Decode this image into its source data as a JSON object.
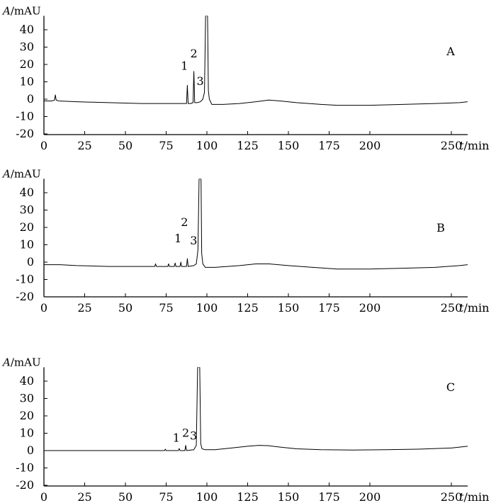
{
  "chart_data": [
    {
      "type": "line",
      "panel": "A",
      "ylabel_symbol": "A",
      "ylabel_unit": "/mAU",
      "xlabel_symbol": "t",
      "xlabel_unit": "/min",
      "xlim": [
        0,
        260
      ],
      "ylim": [
        -20,
        48
      ],
      "xticks": [
        0,
        25,
        50,
        75,
        100,
        125,
        150,
        175,
        200,
        250
      ],
      "yticks": [
        -20,
        -10,
        0,
        10,
        20,
        30,
        40
      ],
      "peaks": [
        {
          "label": "1",
          "x": 88,
          "y": 8
        },
        {
          "label": "2",
          "x": 92,
          "y": 16
        },
        {
          "label": "3",
          "x": 98.5,
          "y": 4
        }
      ],
      "x": [
        0,
        5,
        6.5,
        7,
        7.5,
        9,
        20,
        40,
        60,
        80,
        86,
        87.5,
        88,
        88.5,
        90,
        91.5,
        92,
        92.5,
        94,
        96,
        97.5,
        98.5,
        99.2,
        99.6,
        100,
        100.4,
        100.9,
        101.5,
        103,
        110,
        120,
        130,
        138,
        145,
        155,
        170,
        180,
        200,
        220,
        240,
        255,
        260
      ],
      "y": [
        -1,
        -1,
        -0.5,
        2.5,
        -0.5,
        -1,
        -1.5,
        -2,
        -2.5,
        -2.5,
        -2.5,
        -2.5,
        8,
        -2.5,
        -2.5,
        -2,
        16,
        -2,
        -2,
        -1.5,
        0,
        4,
        48,
        48,
        48,
        48,
        5,
        0,
        -3,
        -3,
        -2.5,
        -1.5,
        -0.5,
        -1,
        -2,
        -3,
        -3.5,
        -3.5,
        -3,
        -2.5,
        -2,
        -1.5
      ]
    },
    {
      "type": "line",
      "panel": "B",
      "ylabel_symbol": "A",
      "ylabel_unit": "/mAU",
      "xlabel_symbol": "t",
      "xlabel_unit": "/min",
      "xlim": [
        0,
        260
      ],
      "ylim": [
        -20,
        48
      ],
      "xticks": [
        0,
        25,
        50,
        75,
        100,
        125,
        150,
        175,
        200,
        250
      ],
      "yticks": [
        -20,
        -10,
        0,
        10,
        20,
        30,
        40
      ],
      "peaks": [
        {
          "label": "1",
          "x": 84,
          "y": 0
        },
        {
          "label": "2",
          "x": 88,
          "y": 2
        },
        {
          "label": "3",
          "x": 94.5,
          "y": 7
        }
      ],
      "x": [
        0,
        10,
        20,
        40,
        60,
        68,
        68.5,
        69,
        76,
        76.5,
        77,
        80,
        80.5,
        81,
        83.5,
        84,
        84.5,
        87.5,
        88,
        88.5,
        92,
        93.5,
        94.5,
        95.2,
        95.6,
        96,
        96.4,
        96.8,
        97.5,
        99,
        105,
        120,
        130,
        138,
        150,
        165,
        180,
        200,
        220,
        240,
        255,
        260
      ],
      "y": [
        -1.5,
        -1.5,
        -2,
        -2.5,
        -2.5,
        -2.5,
        -1,
        -2.5,
        -2.5,
        -1,
        -2.5,
        -2.5,
        -0.5,
        -2.5,
        -2.5,
        0,
        -2.5,
        -2.5,
        2,
        -2.5,
        -2,
        -1,
        7,
        48,
        48,
        48,
        48,
        5,
        -1,
        -3,
        -3,
        -2,
        -1,
        -1,
        -2,
        -3,
        -4,
        -4,
        -3.5,
        -3,
        -2,
        -1.5
      ]
    },
    {
      "type": "line",
      "panel": "C",
      "ylabel_symbol": "A",
      "ylabel_unit": "/mAU",
      "xlabel_symbol": "t",
      "xlabel_unit": "/min",
      "xlim": [
        0,
        260
      ],
      "ylim": [
        -20,
        48
      ],
      "xticks": [
        0,
        25,
        50,
        75,
        100,
        125,
        150,
        175,
        200,
        250
      ],
      "yticks": [
        -20,
        -10,
        0,
        10,
        20,
        30,
        40
      ],
      "peaks": [
        {
          "label": "1",
          "x": 83,
          "y": 1
        },
        {
          "label": "2",
          "x": 87,
          "y": 3
        },
        {
          "label": "3",
          "x": 93.5,
          "y": 3
        }
      ],
      "x": [
        0,
        20,
        40,
        60,
        74,
        74.5,
        75,
        82.5,
        83,
        83.5,
        86.5,
        87,
        87.5,
        92,
        93.5,
        94.3,
        94.8,
        95.2,
        95.6,
        96.2,
        97,
        99,
        105,
        115,
        125,
        132,
        138,
        145,
        155,
        170,
        190,
        210,
        230,
        250,
        255,
        260
      ],
      "y": [
        0,
        0,
        0,
        0,
        0,
        0.8,
        0,
        0,
        1.2,
        0,
        0,
        3,
        0,
        0.5,
        3,
        48,
        48,
        48,
        48,
        4,
        1,
        0.5,
        0.5,
        1.5,
        2.5,
        3,
        2.8,
        2,
        1,
        0.5,
        0.3,
        0.5,
        0.8,
        1.5,
        2,
        2.5
      ]
    }
  ]
}
